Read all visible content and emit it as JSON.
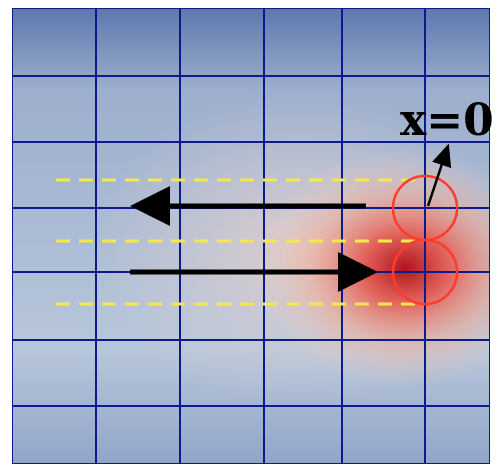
{
  "diagram": {
    "label": "x=0",
    "colors": {
      "background_base": "#b7c6da",
      "background_edge": "#4e69a6",
      "heat_core": "#b0141e",
      "heat_mid": "#e4584e",
      "heat_outer": "#f3a992",
      "grid": "#0b1a8c",
      "guide_lines": "#f4e84a",
      "circles": "#ff3b2f",
      "arrows": "#000000"
    }
  }
}
